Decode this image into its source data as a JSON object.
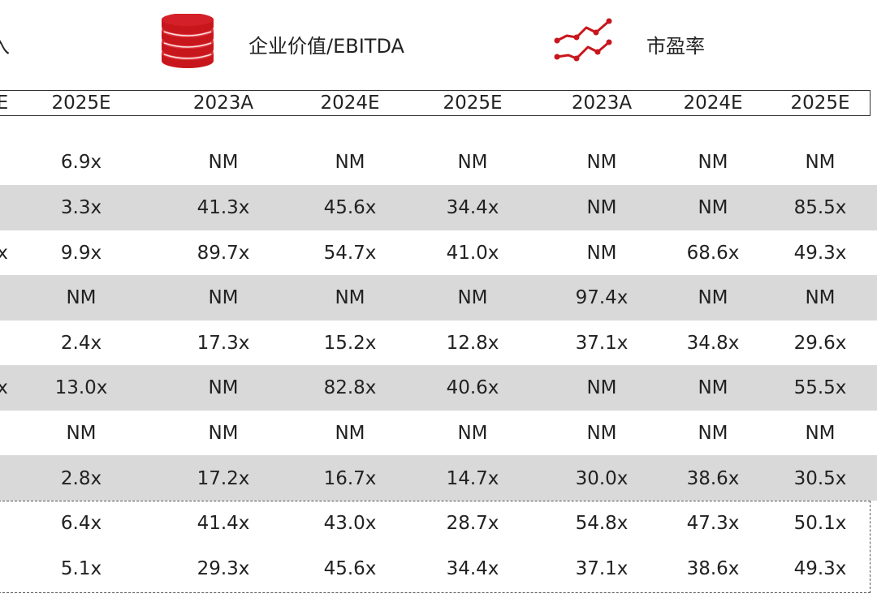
{
  "groups": {
    "revenue_label_fragment": "入",
    "ev_ebitda_label": "企业价值/EBITDA",
    "pe_label": "市盈率"
  },
  "colors": {
    "accent_red": "#c8161d",
    "stripe_gray": "#d9d9d9"
  },
  "icons": {
    "ev": "coin-stack-icon",
    "pe": "trend-line-icon"
  },
  "columns": [
    "E",
    "2025E",
    "2023A",
    "2024E",
    "2025E",
    "2023A",
    "2024E",
    "2025E"
  ],
  "rows": [
    [
      "",
      "6.9x",
      "NM",
      "NM",
      "NM",
      "NM",
      "NM",
      "NM"
    ],
    [
      "",
      "3.3x",
      "41.3x",
      "45.6x",
      "34.4x",
      "NM",
      "NM",
      "85.5x"
    ],
    [
      "x",
      "9.9x",
      "89.7x",
      "54.7x",
      "41.0x",
      "NM",
      "68.6x",
      "49.3x"
    ],
    [
      "",
      "NM",
      "NM",
      "NM",
      "NM",
      "97.4x",
      "NM",
      "NM"
    ],
    [
      "",
      "2.4x",
      "17.3x",
      "15.2x",
      "12.8x",
      "37.1x",
      "34.8x",
      "29.6x"
    ],
    [
      "x",
      "13.0x",
      "NM",
      "82.8x",
      "40.6x",
      "NM",
      "NM",
      "55.5x"
    ],
    [
      "",
      "NM",
      "NM",
      "NM",
      "NM",
      "NM",
      "NM",
      "NM"
    ],
    [
      "",
      "2.8x",
      "17.2x",
      "16.7x",
      "14.7x",
      "30.0x",
      "38.6x",
      "30.5x"
    ]
  ],
  "summary_rows": [
    [
      "",
      "6.4x",
      "41.4x",
      "43.0x",
      "28.7x",
      "54.8x",
      "47.3x",
      "50.1x"
    ],
    [
      "",
      "5.1x",
      "29.3x",
      "45.6x",
      "34.4x",
      "37.1x",
      "38.6x",
      "49.3x"
    ]
  ]
}
